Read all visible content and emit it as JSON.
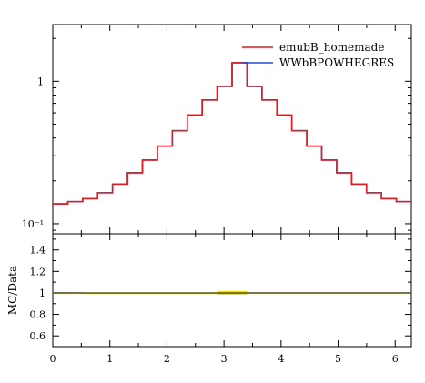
{
  "chart_data": [
    {
      "panel": "main",
      "type": "line",
      "style": "step-histogram",
      "y_scale": "log",
      "ylim": [
        0.085,
        2.5
      ],
      "xlim": [
        0,
        6.283
      ],
      "y_tick_labels": [
        {
          "value": 1,
          "label": "1"
        },
        {
          "value": 0.1,
          "label": "10⁻¹"
        }
      ],
      "legend_position": "top-right",
      "bin_edges": [
        0,
        0.2618,
        0.5236,
        0.7854,
        1.0472,
        1.309,
        1.5708,
        1.8326,
        2.0944,
        2.3562,
        2.618,
        2.8798,
        3.1416,
        3.4034,
        3.6652,
        3.927,
        4.1888,
        4.4506,
        4.7124,
        4.9742,
        5.236,
        5.4978,
        5.7596,
        6.0214,
        6.2832
      ],
      "series": [
        {
          "name": "emubB_homemade",
          "color": "#e41a1c",
          "values": [
            0.138,
            0.143,
            0.15,
            0.165,
            0.19,
            0.228,
            0.28,
            0.35,
            0.45,
            0.58,
            0.74,
            0.92,
            1.35,
            0.92,
            0.74,
            0.58,
            0.45,
            0.35,
            0.28,
            0.228,
            0.19,
            0.165,
            0.15,
            0.143
          ]
        },
        {
          "name": "WWbBPOWHEGRES",
          "color": "#1f4fd6",
          "values": [
            0.138,
            0.143,
            0.15,
            0.165,
            0.19,
            0.228,
            0.28,
            0.35,
            0.45,
            0.58,
            0.74,
            0.92,
            1.35,
            0.92,
            0.74,
            0.58,
            0.45,
            0.35,
            0.28,
            0.228,
            0.19,
            0.165,
            0.15,
            0.143
          ]
        }
      ]
    },
    {
      "panel": "ratio",
      "type": "line",
      "ylabel": "MC/Data",
      "ylim": [
        0.5,
        1.55
      ],
      "xlim": [
        0,
        6.283
      ],
      "y_ticks": [
        "0.6",
        "0.8",
        "1",
        "1.2",
        "1.4"
      ],
      "x_ticks": [
        "0",
        "1",
        "2",
        "3",
        "4",
        "5",
        "6"
      ],
      "reference_line": 1.0,
      "reference_color": "#000000",
      "band_color": "#f2e600",
      "band": [
        {
          "x0": 0.0,
          "x1": 0.5236,
          "lo": 0.993,
          "hi": 1.007
        },
        {
          "x0": 0.5236,
          "x1": 2.8798,
          "lo": 0.996,
          "hi": 1.004
        },
        {
          "x0": 2.8798,
          "x1": 3.1416,
          "lo": 0.982,
          "hi": 1.018
        },
        {
          "x0": 3.1416,
          "x1": 3.4034,
          "lo": 0.982,
          "hi": 1.018
        },
        {
          "x0": 3.4034,
          "x1": 6.2832,
          "lo": 0.994,
          "hi": 1.006
        }
      ]
    }
  ]
}
